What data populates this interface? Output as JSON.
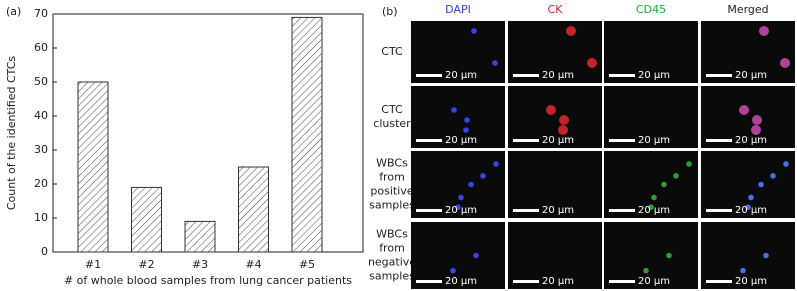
{
  "chart_data": {
    "type": "bar",
    "panel_label": "(a)",
    "x_label": "# of whole blood samples from lung cancer patients",
    "y_label": "Count of the identified CTCs",
    "categories": [
      "#1",
      "#2",
      "#3",
      "#4",
      "#5"
    ],
    "values": [
      50,
      19,
      9,
      25,
      69
    ],
    "color": "#555555",
    "hatch": true,
    "ylim": [
      0,
      70
    ],
    "yticks": [
      0,
      10,
      20,
      30,
      40,
      50,
      60,
      70
    ]
  },
  "panel_b": {
    "panel_label": "(b)",
    "columns": [
      {
        "label": "DAPI",
        "color": "#3344ee"
      },
      {
        "label": "CK",
        "color": "#cc2233"
      },
      {
        "label": "CD45",
        "color": "#22aa33"
      },
      {
        "label": "Merged",
        "color": "#222222"
      }
    ],
    "rows": [
      {
        "lines": [
          "CTC"
        ]
      },
      {
        "lines": [
          "CTC",
          "cluster"
        ]
      },
      {
        "lines": [
          "WBCs",
          "from",
          "positive",
          "samples"
        ]
      },
      {
        "lines": [
          "WBCs",
          "from",
          "negative",
          "samples"
        ]
      }
    ],
    "scale_bar": "20 μm"
  }
}
